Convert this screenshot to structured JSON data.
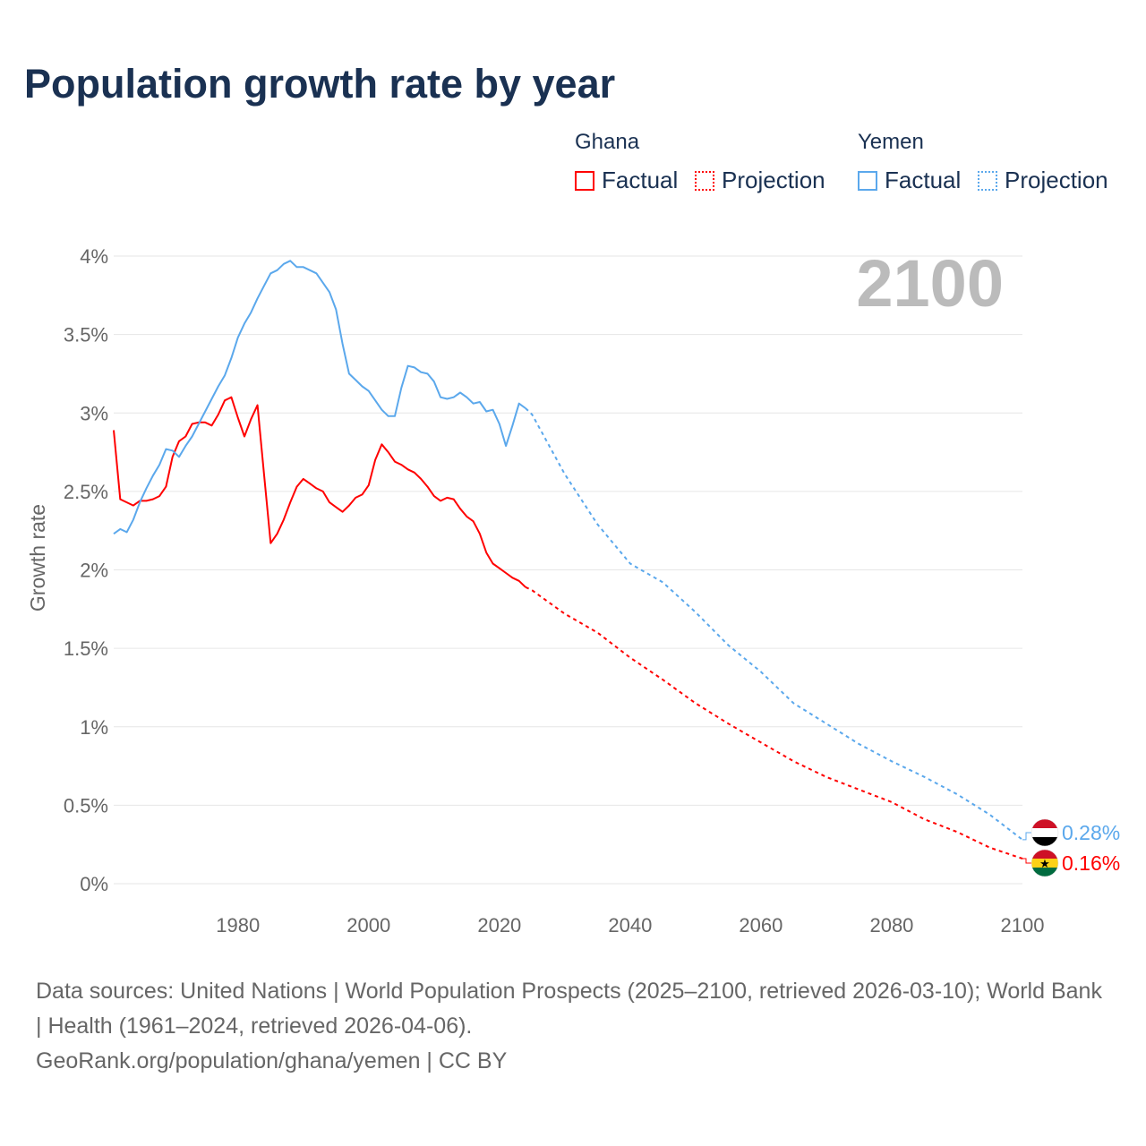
{
  "title": "Population growth rate by year",
  "legend": {
    "groups": [
      {
        "name": "Ghana",
        "color": "#ff0000",
        "factual": "Factual",
        "projection": "Projection"
      },
      {
        "name": "Yemen",
        "color": "#5ba8ec",
        "factual": "Factual",
        "projection": "Projection"
      }
    ]
  },
  "year_label": "2100",
  "footer": {
    "sources": "Data sources: United Nations | World Population Prospects (2025–2100, retrieved 2026-03-10); World Bank | Health (1961–2024, retrieved 2026-04-06).",
    "link": "GeoRank.org/population/ghana/yemen | CC BY"
  },
  "chart_data": {
    "type": "line",
    "title": "Population growth rate by year",
    "xlabel": "",
    "ylabel": "Growth rate",
    "xlim": [
      1961,
      2100
    ],
    "ylim": [
      0,
      4
    ],
    "xticks": [
      1980,
      2000,
      2020,
      2040,
      2060,
      2080,
      2100
    ],
    "xtick_labels": [
      "1980",
      "2000",
      "2020",
      "2040",
      "2060",
      "2080",
      "2100"
    ],
    "yticks": [
      0,
      0.5,
      1,
      1.5,
      2,
      2.5,
      3,
      3.5,
      4
    ],
    "ytick_labels": [
      "0%",
      "0.5%",
      "1%",
      "1.5%",
      "2%",
      "2.5%",
      "3%",
      "3.5%",
      "4%"
    ],
    "grid": true,
    "legend_position": "top-right",
    "series": [
      {
        "name": "Ghana",
        "color": "#ff0000",
        "end_label": "0.16%",
        "factual": {
          "x": [
            1961,
            1962,
            1963,
            1964,
            1965,
            1966,
            1967,
            1968,
            1969,
            1970,
            1971,
            1972,
            1973,
            1974,
            1975,
            1976,
            1977,
            1978,
            1979,
            1980,
            1981,
            1982,
            1983,
            1984,
            1985,
            1986,
            1987,
            1988,
            1989,
            1990,
            1991,
            1992,
            1993,
            1994,
            1995,
            1996,
            1997,
            1998,
            1999,
            2000,
            2001,
            2002,
            2003,
            2004,
            2005,
            2006,
            2007,
            2008,
            2009,
            2010,
            2011,
            2012,
            2013,
            2014,
            2015,
            2016,
            2017,
            2018,
            2019,
            2020,
            2021,
            2022,
            2023,
            2024
          ],
          "y": [
            2.89,
            2.45,
            2.43,
            2.41,
            2.44,
            2.44,
            2.45,
            2.47,
            2.53,
            2.72,
            2.82,
            2.85,
            2.93,
            2.94,
            2.94,
            2.92,
            2.99,
            3.08,
            3.1,
            2.97,
            2.85,
            2.96,
            3.05,
            2.61,
            2.17,
            2.23,
            2.32,
            2.43,
            2.53,
            2.58,
            2.55,
            2.52,
            2.5,
            2.43,
            2.4,
            2.37,
            2.41,
            2.46,
            2.48,
            2.54,
            2.7,
            2.8,
            2.75,
            2.69,
            2.67,
            2.64,
            2.62,
            2.58,
            2.53,
            2.47,
            2.44,
            2.46,
            2.45,
            2.39,
            2.34,
            2.31,
            2.23,
            2.11,
            2.04,
            2.01,
            1.98,
            1.95,
            1.93,
            1.89
          ]
        },
        "projection": {
          "x": [
            2024,
            2025,
            2030,
            2035,
            2040,
            2045,
            2050,
            2055,
            2060,
            2065,
            2070,
            2075,
            2080,
            2085,
            2090,
            2095,
            2100
          ],
          "y": [
            1.89,
            1.87,
            1.72,
            1.6,
            1.44,
            1.3,
            1.15,
            1.02,
            0.9,
            0.78,
            0.68,
            0.6,
            0.52,
            0.41,
            0.33,
            0.23,
            0.16
          ]
        }
      },
      {
        "name": "Yemen",
        "color": "#5ba8ec",
        "end_label": "0.28%",
        "factual": {
          "x": [
            1961,
            1962,
            1963,
            1964,
            1965,
            1966,
            1967,
            1968,
            1969,
            1970,
            1971,
            1972,
            1973,
            1974,
            1975,
            1976,
            1977,
            1978,
            1979,
            1980,
            1981,
            1982,
            1983,
            1984,
            1985,
            1986,
            1987,
            1988,
            1989,
            1990,
            1991,
            1992,
            1993,
            1994,
            1995,
            1996,
            1997,
            1998,
            1999,
            2000,
            2001,
            2002,
            2003,
            2004,
            2005,
            2006,
            2007,
            2008,
            2009,
            2010,
            2011,
            2012,
            2013,
            2014,
            2015,
            2016,
            2017,
            2018,
            2019,
            2020,
            2021,
            2022,
            2023,
            2024
          ],
          "y": [
            2.23,
            2.26,
            2.24,
            2.32,
            2.43,
            2.52,
            2.6,
            2.67,
            2.77,
            2.76,
            2.72,
            2.79,
            2.85,
            2.93,
            3.01,
            3.09,
            3.17,
            3.24,
            3.35,
            3.48,
            3.57,
            3.64,
            3.73,
            3.81,
            3.89,
            3.91,
            3.95,
            3.97,
            3.93,
            3.93,
            3.91,
            3.89,
            3.83,
            3.77,
            3.66,
            3.44,
            3.25,
            3.21,
            3.17,
            3.14,
            3.08,
            3.02,
            2.98,
            2.98,
            3.16,
            3.3,
            3.29,
            3.26,
            3.25,
            3.2,
            3.1,
            3.09,
            3.1,
            3.13,
            3.1,
            3.06,
            3.07,
            3.01,
            3.02,
            2.93,
            2.79,
            2.92,
            3.06,
            3.03
          ]
        },
        "projection": {
          "x": [
            2024,
            2025,
            2030,
            2035,
            2040,
            2045,
            2050,
            2055,
            2060,
            2065,
            2070,
            2075,
            2080,
            2085,
            2090,
            2095,
            2100
          ],
          "y": [
            3.03,
            2.99,
            2.61,
            2.29,
            2.04,
            1.92,
            1.73,
            1.52,
            1.35,
            1.15,
            1.02,
            0.89,
            0.78,
            0.68,
            0.57,
            0.44,
            0.28
          ]
        }
      }
    ]
  }
}
